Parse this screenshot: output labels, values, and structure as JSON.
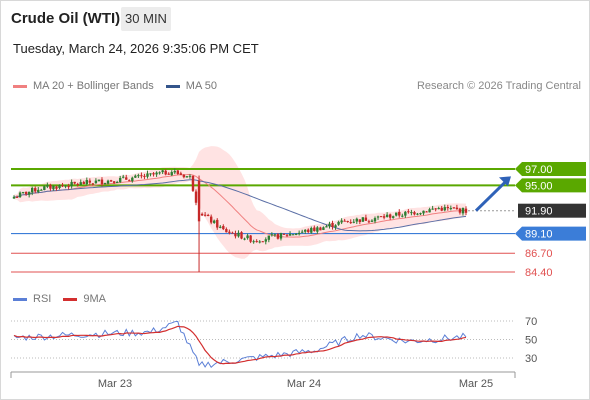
{
  "header": {
    "instrument": "Crude Oil (WTI)",
    "timeframe": "30 MIN",
    "timestamp": "Tuesday, March 24, 2026 9:35:06 PM CET"
  },
  "legend": {
    "items": [
      {
        "label": "MA 20 + Bollinger Bands",
        "color": "#f08080"
      },
      {
        "label": "MA 50",
        "color": "#34558b"
      }
    ],
    "copyright": "Research © 2026 Trading Central"
  },
  "colors": {
    "up": "#2e7d32",
    "down": "#c62828",
    "band": "#ffd9d9",
    "ma50": "#5b6fa6",
    "resistance": "#5aa800",
    "pivot": "#3b7dd8",
    "support": "#e05050",
    "last": "#333333",
    "rsi": "#5b7fd6",
    "rsi_ma": "#d32f2f"
  },
  "chart_data": [
    {
      "type": "candlestick",
      "title": "Crude Oil (WTI)",
      "timeframe": "30 MIN",
      "x_ticks": [
        "Mar 23",
        "Mar 24",
        "Mar 25"
      ],
      "ylim": [
        83.5,
        98.5
      ],
      "approx_close_path": [
        {
          "x": "Mar 22 late",
          "y": 93.6
        },
        {
          "x": "Mar 23 00:00",
          "y": 94.6
        },
        {
          "x": "Mar 23 06:00",
          "y": 95.4
        },
        {
          "x": "Mar 23 12:00",
          "y": 95.9
        },
        {
          "x": "Mar 23 18:00",
          "y": 96.7
        },
        {
          "x": "Mar 23 20:00",
          "y": 96.0
        },
        {
          "x": "Mar 23 21:00",
          "y": 91.8
        },
        {
          "x": "Mar 23 23:00",
          "y": 89.5
        },
        {
          "x": "Mar 24 01:00",
          "y": 88.3
        },
        {
          "x": "Mar 24 04:00",
          "y": 88.9
        },
        {
          "x": "Mar 24 08:00",
          "y": 89.6
        },
        {
          "x": "Mar 24 12:00",
          "y": 90.6
        },
        {
          "x": "Mar 24 16:00",
          "y": 91.0
        },
        {
          "x": "Mar 24 20:00",
          "y": 91.6
        },
        {
          "x": "Mar 25 00:00",
          "y": 92.2
        },
        {
          "x": "Mar 25 03:00",
          "y": 91.9
        }
      ],
      "indicators": [
        "MA 20 + Bollinger Bands",
        "MA 50"
      ],
      "levels": [
        {
          "label": "97.00",
          "value": 97.0,
          "kind": "resistance"
        },
        {
          "label": "95.00",
          "value": 95.0,
          "kind": "resistance"
        },
        {
          "label": "91.90",
          "value": 91.9,
          "kind": "last"
        },
        {
          "label": "89.10",
          "value": 89.1,
          "kind": "pivot"
        },
        {
          "label": "86.70",
          "value": 86.7,
          "kind": "support"
        },
        {
          "label": "84.40",
          "value": 84.4,
          "kind": "support"
        }
      ],
      "projection": {
        "from": 91.9,
        "to": 95.0
      }
    },
    {
      "type": "line",
      "legend": [
        {
          "label": "RSI",
          "color": "#5b7fd6"
        },
        {
          "label": "9MA",
          "color": "#d32f2f"
        }
      ],
      "y_ticks": [
        "70",
        "50",
        "30"
      ],
      "ylim": [
        20,
        80
      ],
      "approx_rsi_path": [
        {
          "x": "Mar 22 late",
          "y": 52
        },
        {
          "x": "Mar 23 06:00",
          "y": 56
        },
        {
          "x": "Mar 23 14:00",
          "y": 58
        },
        {
          "x": "Mar 23 18:00",
          "y": 68
        },
        {
          "x": "Mar 23 21:00",
          "y": 22
        },
        {
          "x": "Mar 24 01:00",
          "y": 30
        },
        {
          "x": "Mar 24 08:00",
          "y": 38
        },
        {
          "x": "Mar 24 14:00",
          "y": 55
        },
        {
          "x": "Mar 24 20:00",
          "y": 48
        },
        {
          "x": "Mar 25 03:00",
          "y": 53
        }
      ]
    }
  ]
}
